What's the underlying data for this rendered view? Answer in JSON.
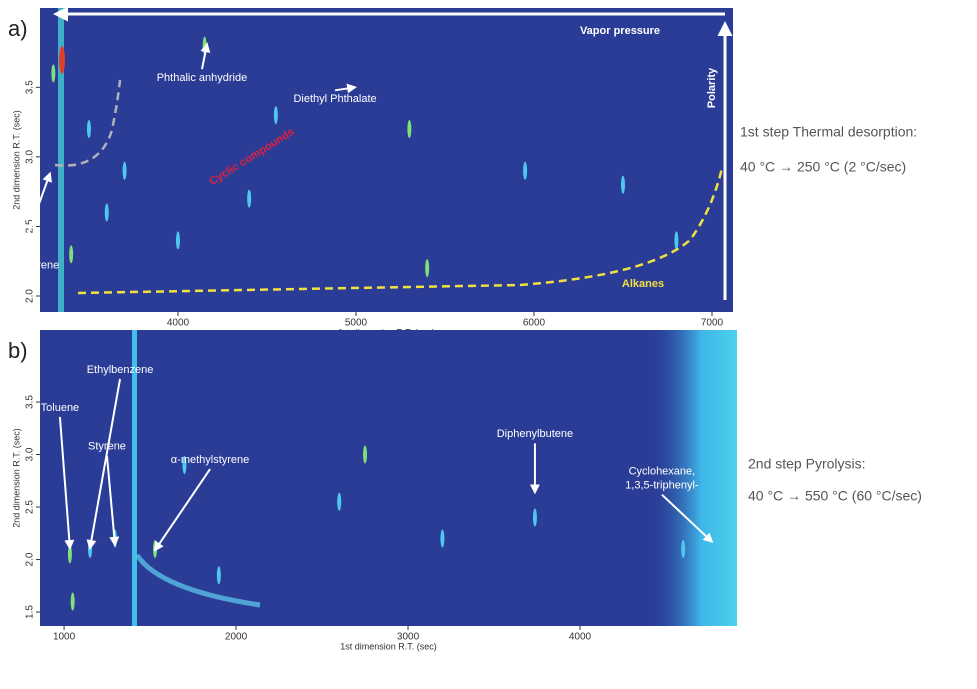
{
  "chart_data": [
    {
      "type": "contour",
      "panel": "a)",
      "xlabel": "1st dimension R.T. (sec)",
      "ylabel": "2nd dimension R.T. (sec)",
      "xlim": [
        3225,
        7118
      ],
      "ylim": [
        1.885,
        4.07
      ],
      "xticks": [
        4000,
        5000,
        6000,
        7000
      ],
      "yticks": [
        {
          "value": 2,
          "label": "2.0"
        },
        2.5,
        {
          "value": 3,
          "label": "3.0"
        },
        3.5
      ],
      "notes": [
        "1st step Thermal desorption:",
        "40 °C → 250 °C (2 °C/sec)"
      ],
      "overlays": [
        "Vapor pressure",
        "Polarity",
        "Cyclic compounds",
        "Alkanes"
      ],
      "annotations": [
        {
          "lines": [
            "Phthalic anhydride"
          ],
          "x": 4163,
          "y": 3.81
        },
        {
          "lines": [
            "Diethyl Phthalate"
          ],
          "x": 4995,
          "y": 3.5
        },
        {
          "lines": [
            "α-methylstyrene"
          ],
          "x": 3281,
          "y": 2.88
        }
      ],
      "peaks": {
        "x": [
          3300,
          3500,
          3700,
          4150,
          4550,
          4400,
          5300,
          5950,
          6500,
          5400,
          4000,
          3600,
          3400,
          6800
        ],
        "y": [
          3.6,
          3.2,
          2.9,
          3.8,
          3.3,
          2.7,
          3.2,
          2.9,
          2.8,
          2.2,
          2.4,
          2.6,
          2.3,
          2.4
        ]
      }
    },
    {
      "type": "contour",
      "panel": "b)",
      "xlabel": "1st dimension R.T. (sec)",
      "ylabel": "2nd dimension R.T. (sec)",
      "xlim": [
        860,
        4913
      ],
      "ylim": [
        1.367,
        4.186
      ],
      "xticks": [
        1000,
        2000,
        3000,
        4000
      ],
      "yticks": [
        1.5,
        {
          "value": 2,
          "label": "2.0"
        },
        2.5,
        {
          "value": 3,
          "label": "3.0"
        },
        3.5
      ],
      "notes": [
        "2nd step Pyrolysis:",
        "40 °C → 550 °C (60 °C/sec)"
      ],
      "annotations": [
        {
          "lines": [
            "Toluene"
          ],
          "x": 1034,
          "y": 2.11
        },
        {
          "lines": [
            "Ethylbenzene"
          ],
          "x": 1151,
          "y": 2.11
        },
        {
          "lines": [
            "Styrene"
          ],
          "x": 1296,
          "y": 2.14
        },
        {
          "lines": [
            "α-methylstyrene"
          ],
          "x": 1529,
          "y": 2.09
        },
        {
          "lines": [
            "Diphenylbutene"
          ],
          "x": 3738,
          "y": 2.64
        },
        {
          "lines": [
            "Cyclohexane,",
            "1,3,5-triphenyl-"
          ],
          "x": 4767,
          "y": 2.17
        }
      ],
      "peaks": {
        "x": [
          1034,
          1151,
          1296,
          1529,
          1700,
          2600,
          2750,
          3738,
          4600,
          1050,
          1900,
          3200
        ],
        "y": [
          2.05,
          2.1,
          2.2,
          2.1,
          2.9,
          2.55,
          3.0,
          2.4,
          2.1,
          1.6,
          1.85,
          2.2
        ]
      }
    }
  ]
}
